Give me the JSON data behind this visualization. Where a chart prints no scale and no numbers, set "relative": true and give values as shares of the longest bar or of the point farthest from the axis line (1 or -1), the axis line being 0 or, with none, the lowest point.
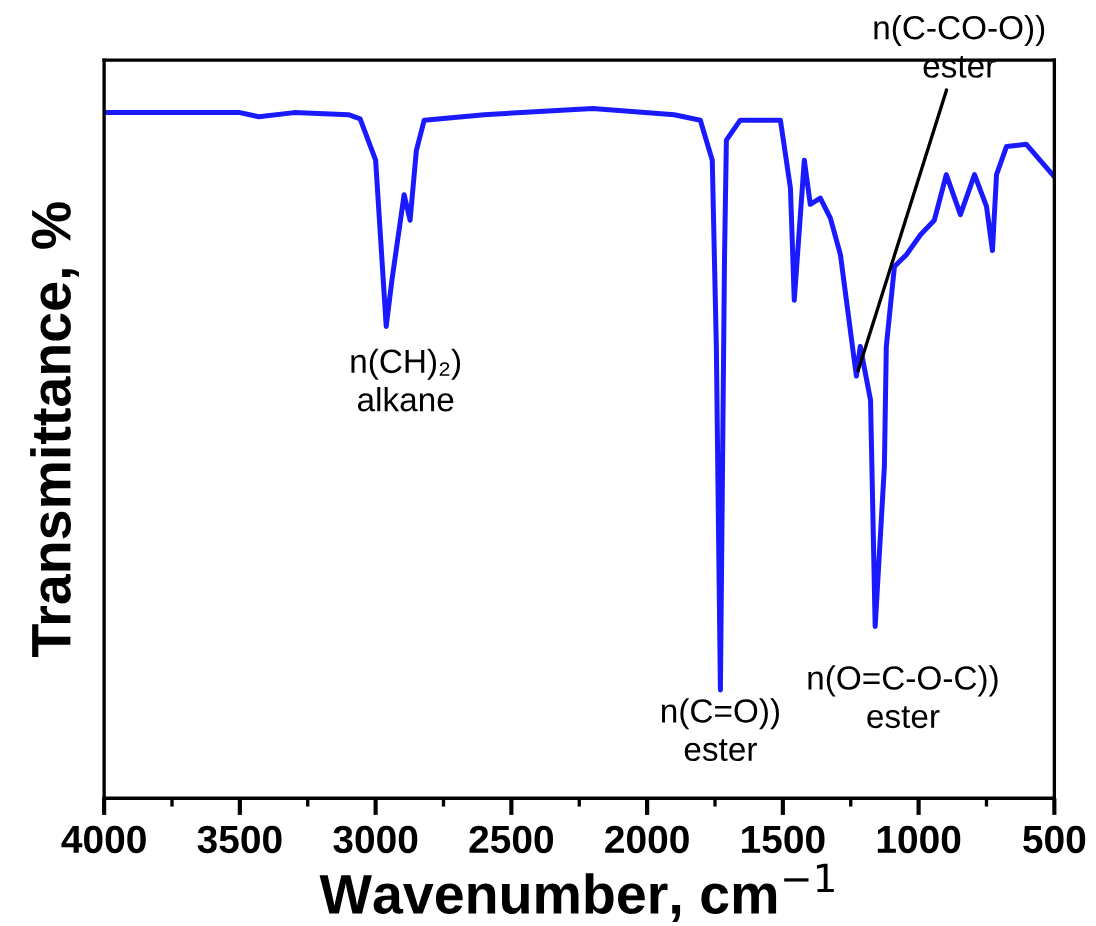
{
  "chart_data": {
    "type": "line",
    "relative": true,
    "xlabel": "Wavenumber, cm$^{−1}$",
    "ylabel": "Transmittance, %",
    "xlim": [
      4000,
      500
    ],
    "xticks": [
      4000,
      3500,
      3000,
      2500,
      2000,
      1500,
      1000,
      500
    ],
    "grid": false,
    "legend": false,
    "marker": "none",
    "line_style": "solid",
    "tick_labels": "x",
    "series": [
      {
        "color": "#1a1aff",
        "x": [
          4000,
          3500,
          3430,
          3300,
          3100,
          3057,
          3000,
          2961,
          2940,
          2895,
          2873,
          2850,
          2821,
          2600,
          2200,
          1900,
          1804,
          1760,
          1745,
          1730,
          1715,
          1708,
          1657,
          1509,
          1472,
          1458,
          1421,
          1399,
          1362,
          1325,
          1288,
          1237,
          1229,
          1215,
          1177,
          1160,
          1126,
          1119,
          1089,
          1045,
          993,
          942,
          898,
          846,
          794,
          750,
          728,
          713,
          676,
          603,
          500
        ],
        "values": [
          0.994,
          0.994,
          0.988,
          0.994,
          0.991,
          0.985,
          0.925,
          0.684,
          0.751,
          0.875,
          0.838,
          0.939,
          0.983,
          0.991,
          1.0,
          0.991,
          0.983,
          0.925,
          0.655,
          0.157,
          0.78,
          0.954,
          0.983,
          0.983,
          0.884,
          0.722,
          0.925,
          0.861,
          0.87,
          0.841,
          0.788,
          0.635,
          0.612,
          0.655,
          0.577,
          0.249,
          0.481,
          0.655,
          0.771,
          0.788,
          0.817,
          0.838,
          0.904,
          0.846,
          0.904,
          0.858,
          0.794,
          0.904,
          0.945,
          0.948,
          0.901
        ]
      }
    ],
    "annotations": [
      {
        "text": "n(CH)₂)\nalkane",
        "x": 2961,
        "y": 0.684
      },
      {
        "text": "n(C=O))\nester",
        "x": 1730,
        "y": 0.157
      },
      {
        "text": "n(O=C-O-C))\nester",
        "x": 1160,
        "y": 0.249
      },
      {
        "text": "n(C-CO-O))\nester",
        "x": 1229,
        "y": 0.612
      }
    ]
  }
}
